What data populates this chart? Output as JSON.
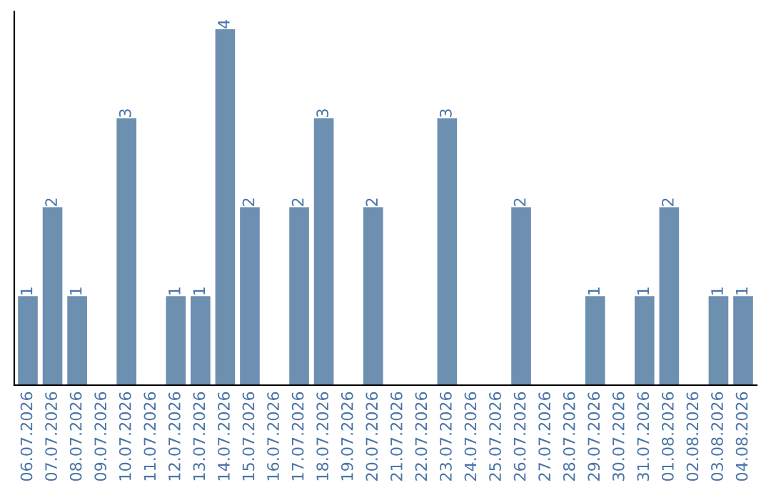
{
  "chart_data": {
    "type": "bar",
    "categories": [
      "06.07.2026",
      "07.07.2026",
      "08.07.2026",
      "09.07.2026",
      "10.07.2026",
      "11.07.2026",
      "12.07.2026",
      "13.07.2026",
      "14.07.2026",
      "15.07.2026",
      "16.07.2026",
      "17.07.2026",
      "18.07.2026",
      "19.07.2026",
      "20.07.2026",
      "21.07.2026",
      "22.07.2026",
      "23.07.2026",
      "24.07.2026",
      "25.07.2026",
      "26.07.2026",
      "27.07.2026",
      "28.07.2026",
      "29.07.2026",
      "30.07.2026",
      "31.07.2026",
      "01.08.2026",
      "02.08.2026",
      "03.08.2026",
      "04.08.2026"
    ],
    "values": [
      1,
      2,
      1,
      0,
      3,
      0,
      1,
      1,
      4,
      2,
      0,
      2,
      3,
      0,
      2,
      0,
      0,
      3,
      0,
      0,
      2,
      0,
      0,
      1,
      0,
      1,
      2,
      0,
      1,
      1
    ],
    "value_labels": [
      "1",
      "2",
      "1",
      null,
      "3",
      null,
      "1",
      "1",
      "4",
      "2",
      null,
      "2",
      "3",
      null,
      "2",
      null,
      null,
      "3",
      null,
      null,
      "2",
      null,
      null,
      "1",
      null,
      "1",
      "2",
      null,
      "1",
      "1"
    ],
    "color": "#6d8fb0",
    "grid": false
  }
}
